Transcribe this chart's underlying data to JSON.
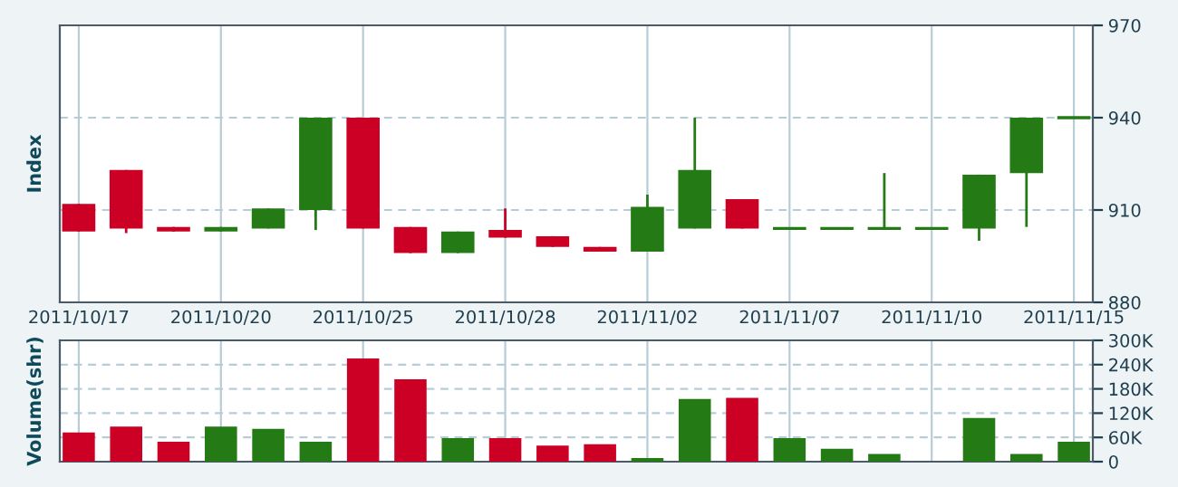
{
  "chart_data": [
    {
      "type": "candlestick",
      "ylabel": "Index",
      "categories": [
        "2011/10/17",
        null,
        null,
        "2011/10/20",
        null,
        null,
        "2011/10/25",
        null,
        null,
        "2011/10/28",
        null,
        null,
        "2011/11/02",
        null,
        null,
        "2011/11/07",
        null,
        null,
        "2011/11/10",
        null,
        null,
        "2011/11/15"
      ],
      "ohlc": [
        [
          912,
          912,
          903,
          903
        ],
        [
          923,
          923,
          902.5,
          904
        ],
        [
          904.5,
          904.5,
          903,
          903
        ],
        [
          903,
          904.5,
          903,
          904.5
        ],
        [
          904,
          910.5,
          904,
          910.5
        ],
        [
          910,
          940,
          903.5,
          940
        ],
        [
          940,
          940,
          904,
          904
        ],
        [
          904.5,
          904.5,
          896,
          896
        ],
        [
          896,
          903,
          896,
          903
        ],
        [
          903.5,
          910.5,
          901,
          901
        ],
        [
          901.5,
          901.5,
          898,
          898
        ],
        [
          898,
          898,
          896.5,
          896.5
        ],
        [
          896.5,
          915,
          896.5,
          911
        ],
        [
          904,
          940,
          904,
          923
        ],
        [
          913.5,
          913.5,
          904,
          904
        ],
        [
          904,
          904,
          904,
          904
        ],
        [
          904,
          904,
          904,
          904
        ],
        [
          904,
          922,
          904,
          904
        ],
        [
          904,
          904,
          904,
          904
        ],
        [
          904,
          921.5,
          900,
          921.5
        ],
        [
          922,
          940,
          904.5,
          940
        ],
        [
          940,
          940,
          940,
          940
        ]
      ],
      "colors": [
        "#cc0025",
        "#cc0025",
        "#cc0025",
        "#247a14",
        "#247a14",
        "#247a14",
        "#cc0025",
        "#cc0025",
        "#247a14",
        "#cc0025",
        "#cc0025",
        "#cc0025",
        "#247a14",
        "#247a14",
        "#cc0025",
        "#247a14",
        "#247a14",
        "#247a14",
        "#247a14",
        "#247a14",
        "#247a14",
        "#247a14"
      ],
      "ylim": [
        880,
        970
      ],
      "yticks": [
        880,
        910,
        940,
        970
      ],
      "grid": true
    },
    {
      "type": "bar",
      "ylabel": "Volume(shr)",
      "tick_labels": "y",
      "categories": [
        "2011/10/17",
        null,
        null,
        "2011/10/20",
        null,
        null,
        "2011/10/25",
        null,
        null,
        "2011/10/28",
        null,
        null,
        "2011/11/02",
        null,
        null,
        "2011/11/07",
        null,
        null,
        "2011/11/10",
        null,
        null,
        "2011/11/15"
      ],
      "values": [
        72000,
        87000,
        49000,
        87000,
        81000,
        49000,
        255000,
        204000,
        58000,
        58000,
        40000,
        43000,
        9000,
        155000,
        158000,
        58000,
        32000,
        19000,
        null,
        108000,
        19000,
        49000
      ],
      "colors": [
        "#cc0025",
        "#cc0025",
        "#cc0025",
        "#247a14",
        "#247a14",
        "#247a14",
        "#cc0025",
        "#cc0025",
        "#247a14",
        "#cc0025",
        "#cc0025",
        "#cc0025",
        "#247a14",
        "#247a14",
        "#cc0025",
        "#247a14",
        "#247a14",
        "#247a14",
        "#247a14",
        "#247a14",
        "#247a14",
        "#247a14"
      ],
      "ylim": [
        0,
        300000
      ],
      "yticks": [
        0,
        {
          "value": 60000,
          "label": "60K"
        },
        {
          "value": 120000,
          "label": "120K"
        },
        {
          "value": 180000,
          "label": "180K"
        },
        {
          "value": 240000,
          "label": "240K"
        },
        {
          "value": 300000,
          "label": "300K"
        }
      ],
      "grid": true
    }
  ]
}
